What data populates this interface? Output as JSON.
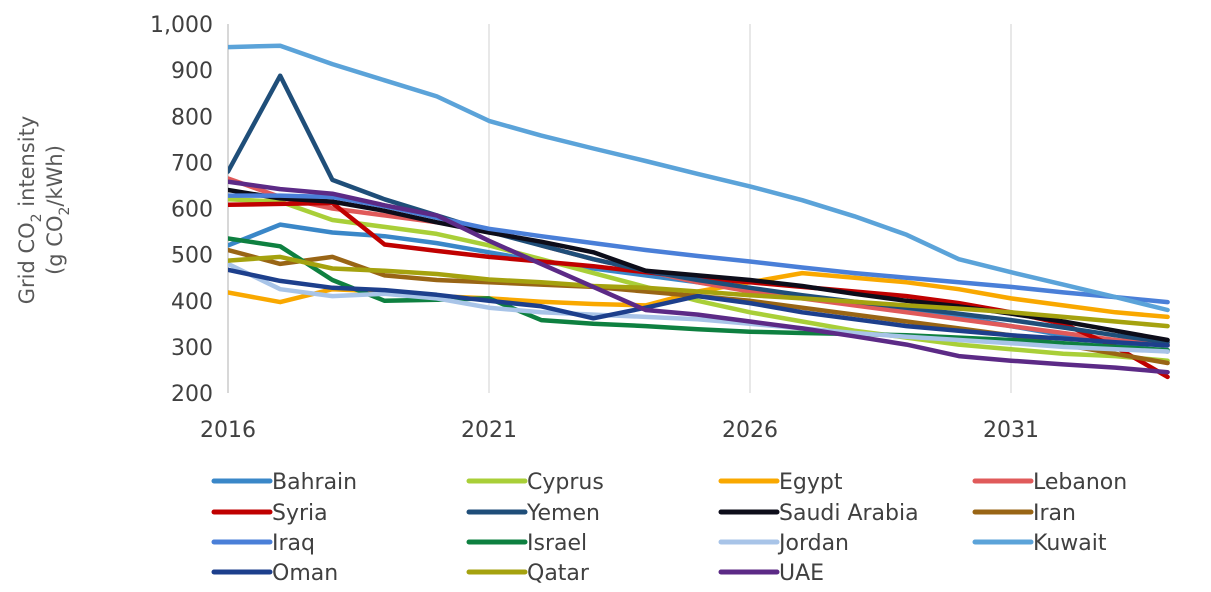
{
  "chart_data": {
    "type": "line",
    "ylabel": {
      "line1": "Grid CO",
      "line1_sub": "2",
      "line1_end": " intensity",
      "line2_start": "(g CO",
      "line2_sub": "2",
      "line2_end": "/kWh)"
    },
    "x_ticks": [
      "2016",
      "2021",
      "2026",
      "2031"
    ],
    "y_ticks": [
      "200",
      "300",
      "400",
      "500",
      "600",
      "700",
      "800",
      "900",
      "1,000"
    ],
    "xlim": [
      2016,
      2034
    ],
    "ylim": [
      200,
      1000
    ],
    "grid": "vertical",
    "legend": "bottom",
    "series": [
      {
        "name": "Bahrain",
        "color": "#3A87C8",
        "x": [
          2016,
          2017,
          2018,
          2019,
          2020,
          2021,
          2022,
          2023,
          2024,
          2025,
          2026,
          2027,
          2028,
          2029,
          2030,
          2031,
          2032,
          2033,
          2034
        ],
        "y": [
          520,
          565,
          548,
          540,
          525,
          505,
          485,
          470,
          455,
          440,
          425,
          410,
          395,
          380,
          365,
          345,
          325,
          305,
          290
        ]
      },
      {
        "name": "Cyprus",
        "color": "#A9CF38",
        "x": [
          2016,
          2017,
          2018,
          2019,
          2020,
          2021,
          2022,
          2023,
          2024,
          2025,
          2026,
          2027,
          2028,
          2029,
          2030,
          2031,
          2032,
          2033,
          2034
        ],
        "y": [
          620,
          615,
          575,
          560,
          545,
          520,
          490,
          460,
          430,
          400,
          375,
          355,
          335,
          320,
          305,
          295,
          285,
          280,
          270
        ]
      },
      {
        "name": "Egypt",
        "color": "#F9A800",
        "x": [
          2016,
          2017,
          2018,
          2019,
          2020,
          2021,
          2022,
          2023,
          2024,
          2025,
          2026,
          2027,
          2028,
          2029,
          2030,
          2031,
          2032,
          2033,
          2034
        ],
        "y": [
          418,
          397,
          425,
          420,
          410,
          405,
          398,
          393,
          390,
          420,
          440,
          460,
          450,
          440,
          425,
          405,
          390,
          375,
          365
        ]
      },
      {
        "name": "Lebanon",
        "color": "#E05A5A",
        "x": [
          2016,
          2017,
          2018,
          2019,
          2020,
          2021,
          2022,
          2023,
          2024,
          2025,
          2026,
          2027,
          2028,
          2029,
          2030,
          2031,
          2032,
          2033,
          2034
        ],
        "y": [
          665,
          625,
          600,
          585,
          570,
          555,
          520,
          490,
          465,
          440,
          420,
          405,
          390,
          375,
          360,
          345,
          330,
          315,
          305
        ]
      },
      {
        "name": "Syria",
        "color": "#C00000",
        "x": [
          2016,
          2017,
          2018,
          2019,
          2020,
          2021,
          2022,
          2023,
          2024,
          2025,
          2026,
          2027,
          2028,
          2029,
          2030,
          2031,
          2032,
          2033,
          2034
        ],
        "y": [
          608,
          610,
          612,
          522,
          508,
          495,
          485,
          475,
          462,
          450,
          440,
          430,
          420,
          410,
          395,
          375,
          350,
          300,
          235
        ]
      },
      {
        "name": "Yemen",
        "color": "#1F4E79",
        "x": [
          2016,
          2017,
          2018,
          2019,
          2020,
          2021,
          2022,
          2023,
          2024,
          2025,
          2026,
          2027,
          2028,
          2029,
          2030,
          2031,
          2032,
          2033,
          2034
        ],
        "y": [
          680,
          888,
          662,
          620,
          585,
          550,
          520,
          490,
          465,
          445,
          428,
          412,
          398,
          385,
          372,
          358,
          342,
          325,
          310
        ]
      },
      {
        "name": "Saudi Arabia",
        "color": "#0D0D1A",
        "x": [
          2016,
          2017,
          2018,
          2019,
          2020,
          2021,
          2022,
          2023,
          2024,
          2025,
          2026,
          2027,
          2028,
          2029,
          2030,
          2031,
          2032,
          2033,
          2034
        ],
        "y": [
          640,
          622,
          615,
          595,
          570,
          548,
          528,
          505,
          465,
          455,
          445,
          432,
          415,
          400,
          388,
          372,
          355,
          335,
          315
        ]
      },
      {
        "name": "Iran",
        "color": "#996515",
        "x": [
          2016,
          2017,
          2018,
          2019,
          2020,
          2021,
          2022,
          2023,
          2024,
          2025,
          2026,
          2027,
          2028,
          2029,
          2030,
          2031,
          2032,
          2033,
          2034
        ],
        "y": [
          510,
          480,
          495,
          455,
          445,
          440,
          435,
          430,
          420,
          410,
          400,
          385,
          370,
          355,
          340,
          325,
          305,
          285,
          265
        ]
      },
      {
        "name": "Iraq",
        "color": "#4A7FD8",
        "x": [
          2016,
          2017,
          2018,
          2019,
          2020,
          2021,
          2022,
          2023,
          2024,
          2025,
          2026,
          2027,
          2028,
          2029,
          2030,
          2031,
          2032,
          2033,
          2034
        ],
        "y": [
          628,
          628,
          625,
          605,
          580,
          556,
          540,
          525,
          510,
          497,
          485,
          472,
          460,
          450,
          440,
          430,
          418,
          408,
          397
        ]
      },
      {
        "name": "Israel",
        "color": "#0E8040",
        "x": [
          2016,
          2017,
          2018,
          2019,
          2020,
          2021,
          2022,
          2023,
          2024,
          2025,
          2026,
          2027,
          2028,
          2029,
          2030,
          2031,
          2032,
          2033,
          2034
        ],
        "y": [
          535,
          518,
          445,
          400,
          402,
          405,
          358,
          350,
          345,
          338,
          333,
          330,
          328,
          325,
          320,
          315,
          308,
          300,
          293
        ]
      },
      {
        "name": "Jordan",
        "color": "#A8C4E8",
        "x": [
          2016,
          2017,
          2018,
          2019,
          2020,
          2021,
          2022,
          2023,
          2024,
          2025,
          2026,
          2027,
          2028,
          2029,
          2030,
          2031,
          2032,
          2033,
          2034
        ],
        "y": [
          480,
          425,
          410,
          415,
          405,
          385,
          375,
          370,
          365,
          360,
          350,
          340,
          330,
          322,
          315,
          308,
          300,
          295,
          290
        ]
      },
      {
        "name": "Kuwait",
        "color": "#5BA3D9",
        "x": [
          2016,
          2017,
          2018,
          2019,
          2020,
          2021,
          2022,
          2023,
          2024,
          2025,
          2026,
          2027,
          2028,
          2029,
          2030,
          2031,
          2032,
          2033,
          2034
        ],
        "y": [
          950,
          953,
          913,
          878,
          843,
          790,
          758,
          730,
          703,
          675,
          648,
          618,
          583,
          543,
          490,
          462,
          435,
          408,
          380
        ]
      },
      {
        "name": "Oman",
        "color": "#1D3F8C",
        "x": [
          2016,
          2017,
          2018,
          2019,
          2020,
          2021,
          2022,
          2023,
          2024,
          2025,
          2026,
          2027,
          2028,
          2029,
          2030,
          2031,
          2032,
          2033,
          2034
        ],
        "y": [
          467,
          443,
          428,
          423,
          413,
          400,
          388,
          362,
          385,
          410,
          395,
          375,
          360,
          345,
          335,
          325,
          318,
          310,
          303
        ]
      },
      {
        "name": "Qatar",
        "color": "#A5A20F",
        "x": [
          2016,
          2017,
          2018,
          2019,
          2020,
          2021,
          2022,
          2023,
          2024,
          2025,
          2026,
          2027,
          2028,
          2029,
          2030,
          2031,
          2032,
          2033,
          2034
        ],
        "y": [
          487,
          495,
          470,
          465,
          458,
          446,
          440,
          432,
          428,
          420,
          412,
          405,
          398,
          390,
          383,
          375,
          365,
          355,
          345
        ]
      },
      {
        "name": "UAE",
        "color": "#5C2A86",
        "x": [
          2016,
          2017,
          2018,
          2019,
          2020,
          2021,
          2022,
          2023,
          2024,
          2025,
          2026,
          2027,
          2028,
          2029,
          2030,
          2031,
          2032,
          2033,
          2034
        ],
        "y": [
          658,
          642,
          632,
          607,
          585,
          530,
          480,
          430,
          380,
          370,
          355,
          340,
          323,
          305,
          280,
          270,
          262,
          255,
          245
        ]
      }
    ]
  }
}
